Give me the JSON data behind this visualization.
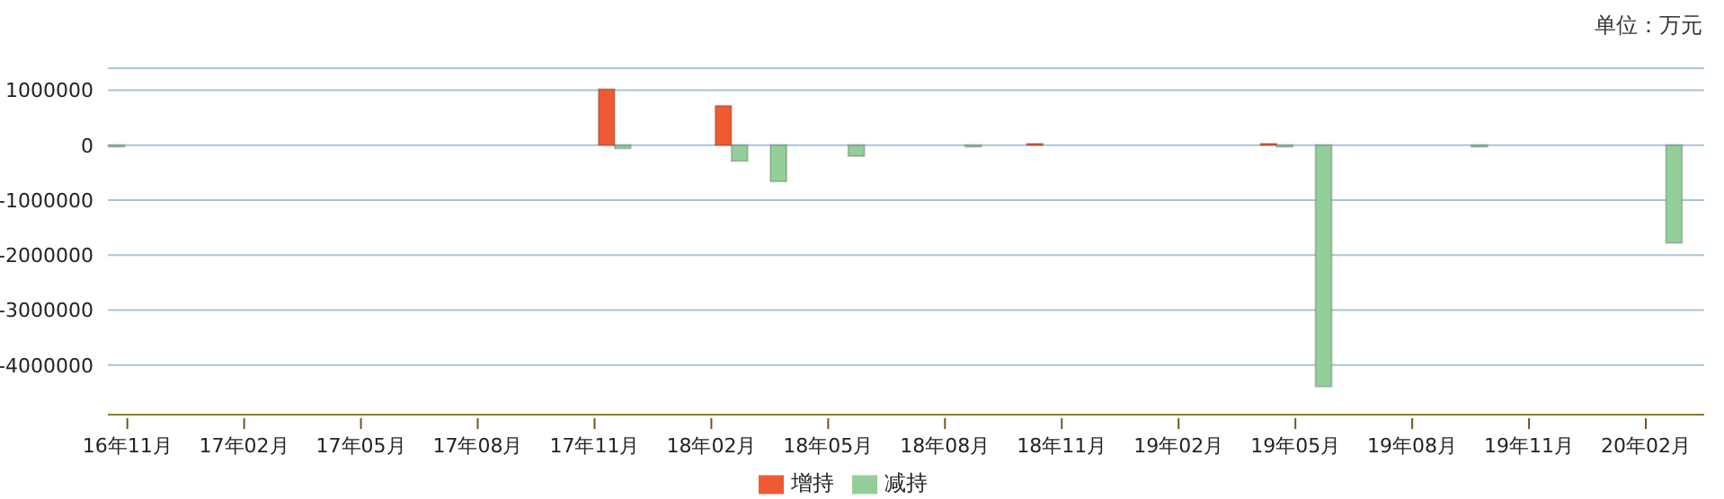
{
  "chart_data": {
    "type": "bar",
    "categories": [
      "16年11月",
      null,
      null,
      "17年02月",
      null,
      null,
      "17年05月",
      null,
      null,
      "17年08月",
      null,
      null,
      "17年11月",
      null,
      null,
      "18年02月",
      null,
      null,
      "18年05月",
      null,
      null,
      "18年08月",
      null,
      null,
      "18年11月",
      null,
      null,
      "19年02月",
      null,
      null,
      "19年05月",
      null,
      null,
      "19年08月",
      null,
      null,
      "19年11月",
      null,
      null,
      "20年02月",
      null
    ],
    "series": [
      {
        "name": "增持",
        "color": "#f05a32",
        "values": [
          null,
          null,
          null,
          null,
          null,
          null,
          null,
          null,
          null,
          null,
          null,
          null,
          1020000,
          null,
          null,
          720000,
          null,
          null,
          null,
          null,
          null,
          null,
          null,
          30000,
          null,
          null,
          null,
          null,
          null,
          30000,
          null,
          null,
          null,
          null,
          null,
          null,
          null,
          null,
          null,
          null,
          null
        ]
      },
      {
        "name": "减持",
        "color": "#94cf9a",
        "values": [
          -30000,
          null,
          null,
          null,
          null,
          null,
          null,
          null,
          null,
          null,
          null,
          null,
          null,
          -60000,
          null,
          null,
          -290000,
          -660000,
          null,
          -200000,
          null,
          null,
          -30000,
          null,
          null,
          null,
          null,
          null,
          null,
          null,
          -30000,
          -4390000,
          null,
          null,
          null,
          -30000,
          null,
          null,
          null,
          null,
          -1780000
        ]
      }
    ],
    "ylim": [
      -4900000,
      1400000
    ],
    "yticks": [
      1000000,
      0,
      -1000000,
      -2000000,
      -3000000,
      -4000000
    ],
    "grid": "y",
    "legend": "bottom",
    "annotations": [
      "单位：万元"
    ]
  }
}
